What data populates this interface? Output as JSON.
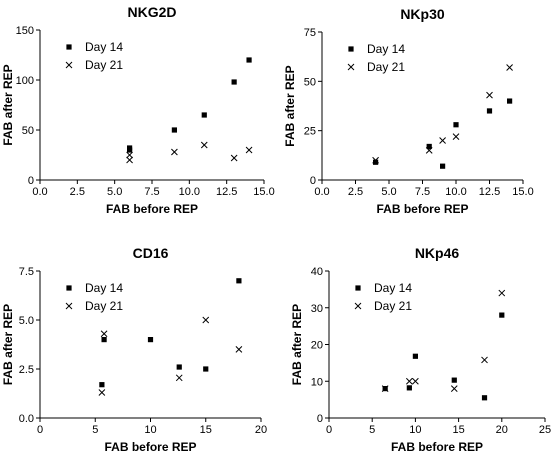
{
  "chart_data": [
    {
      "type": "scatter",
      "title": "NKG2D",
      "xlabel": "FAB before REP",
      "ylabel": "FAB after REP",
      "xlim": [
        0,
        15
      ],
      "ylim": [
        0,
        150
      ],
      "xticks": [
        0,
        2.5,
        5,
        7.5,
        10,
        12.5,
        15
      ],
      "yticks": [
        0,
        50,
        100,
        150
      ],
      "xtick_labels": [
        "0.0",
        "2.5",
        "5.0",
        "7.5",
        "10.0",
        "12.5",
        "15.0"
      ],
      "ytick_labels": [
        "0",
        "50",
        "100",
        "150"
      ],
      "legend_position": "top-left",
      "series": [
        {
          "name": "Day 14",
          "marker": "square",
          "points": [
            [
              6,
              32
            ],
            [
              6,
              30
            ],
            [
              9,
              50
            ],
            [
              11,
              65
            ],
            [
              13,
              98
            ],
            [
              14,
              120
            ]
          ]
        },
        {
          "name": "Day 21",
          "marker": "x",
          "points": [
            [
              6,
              25
            ],
            [
              6,
              20
            ],
            [
              9,
              28
            ],
            [
              11,
              35
            ],
            [
              13,
              22
            ],
            [
              14,
              30
            ]
          ]
        }
      ]
    },
    {
      "type": "scatter",
      "title": "NKp30",
      "xlabel": "FAB before REP",
      "ylabel": "FAB after REP",
      "xlim": [
        0,
        15
      ],
      "ylim": [
        0,
        75
      ],
      "xticks": [
        0,
        2.5,
        5,
        7.5,
        10,
        12.5,
        15
      ],
      "yticks": [
        0,
        25,
        50,
        75
      ],
      "xtick_labels": [
        "0.0",
        "2.5",
        "5.0",
        "7.5",
        "10.0",
        "12.5",
        "15.0"
      ],
      "ytick_labels": [
        "0",
        "25",
        "50",
        "75"
      ],
      "legend_position": "top-left",
      "series": [
        {
          "name": "Day 14",
          "marker": "square",
          "points": [
            [
              4,
              9
            ],
            [
              8,
              17
            ],
            [
              9,
              7
            ],
            [
              10,
              28
            ],
            [
              12.5,
              35
            ],
            [
              14,
              40
            ]
          ]
        },
        {
          "name": "Day 21",
          "marker": "x",
          "points": [
            [
              4,
              10
            ],
            [
              8,
              15
            ],
            [
              9,
              20
            ],
            [
              10,
              22
            ],
            [
              12.5,
              43
            ],
            [
              14,
              57
            ]
          ]
        }
      ]
    },
    {
      "type": "scatter",
      "title": "CD16",
      "xlabel": "FAB before REP",
      "ylabel": "FAB after REP",
      "xlim": [
        0,
        20
      ],
      "ylim": [
        0,
        7.5
      ],
      "xticks": [
        0,
        5,
        10,
        15,
        20
      ],
      "yticks": [
        0,
        2.5,
        5,
        7.5
      ],
      "xtick_labels": [
        "0",
        "5",
        "10",
        "15",
        "20"
      ],
      "ytick_labels": [
        "0.0",
        "2.5",
        "5.0",
        "7.5"
      ],
      "legend_position": "top-left",
      "series": [
        {
          "name": "Day 14",
          "marker": "square",
          "points": [
            [
              5.6,
              1.7
            ],
            [
              5.8,
              4.0
            ],
            [
              10,
              4.0
            ],
            [
              12.6,
              2.6
            ],
            [
              15,
              2.5
            ],
            [
              18,
              7.0
            ]
          ]
        },
        {
          "name": "Day 21",
          "marker": "x",
          "points": [
            [
              5.6,
              1.3
            ],
            [
              5.8,
              4.3
            ],
            [
              12.6,
              2.05
            ],
            [
              15,
              5.0
            ],
            [
              18,
              3.5
            ]
          ]
        }
      ]
    },
    {
      "type": "scatter",
      "title": "NKp46",
      "xlabel": "FAB before REP",
      "ylabel": "FAB after REP",
      "xlim": [
        0,
        25
      ],
      "ylim": [
        0,
        40
      ],
      "xticks": [
        0,
        5,
        10,
        15,
        20,
        25
      ],
      "yticks": [
        0,
        10,
        20,
        30,
        40
      ],
      "xtick_labels": [
        "0",
        "5",
        "10",
        "15",
        "20",
        "25"
      ],
      "ytick_labels": [
        "0",
        "10",
        "20",
        "30",
        "40"
      ],
      "legend_position": "top-left",
      "series": [
        {
          "name": "Day 14",
          "marker": "square",
          "points": [
            [
              6.5,
              8
            ],
            [
              9.3,
              8.2
            ],
            [
              10,
              16.8
            ],
            [
              14.5,
              10.3
            ],
            [
              18,
              5.5
            ],
            [
              20,
              28
            ]
          ]
        },
        {
          "name": "Day 21",
          "marker": "x",
          "points": [
            [
              6.5,
              8
            ],
            [
              9.3,
              10
            ],
            [
              10,
              10
            ],
            [
              14.5,
              8
            ],
            [
              18,
              15.8
            ],
            [
              20,
              34
            ]
          ]
        }
      ]
    }
  ]
}
